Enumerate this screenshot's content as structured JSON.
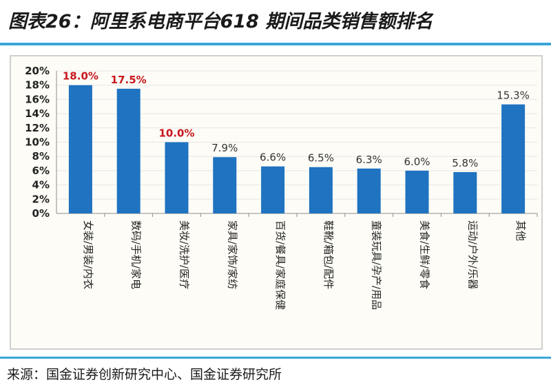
{
  "title": "图表26：阿里系电商平台618 期间品类销售额排名",
  "source": "来源：国金证券创新研究中心、国金证券研究所",
  "chart_data": {
    "type": "bar",
    "categories": [
      "女装/男装/内衣",
      "数码/手机/家电",
      "美妆/洗护/医疗",
      "家具/家饰/家纺",
      "百货/餐具/家庭保健",
      "鞋靴/箱包/配件",
      "童装玩具/孕产/用品",
      "美食/生鲜/零食",
      "运动/户外/乐器",
      "其他"
    ],
    "values": [
      18.0,
      17.5,
      10.0,
      7.9,
      6.6,
      6.5,
      6.3,
      6.0,
      5.8,
      15.3
    ],
    "data_labels": [
      "18.0%",
      "17.5%",
      "10.0%",
      "7.9%",
      "6.6%",
      "6.5%",
      "6.3%",
      "6.0%",
      "5.8%",
      "15.3%"
    ],
    "highlighted": [
      true,
      true,
      true,
      false,
      false,
      false,
      false,
      false,
      false,
      false
    ],
    "yticks": [
      "0%",
      "2%",
      "4%",
      "6%",
      "8%",
      "10%",
      "12%",
      "14%",
      "16%",
      "18%",
      "20%"
    ],
    "ylim": [
      0,
      20
    ],
    "grid": true,
    "colors": {
      "bar": "#1f73c0",
      "highlight_label": "#c8161d",
      "normal_label": "#333333",
      "grid": "#e6e6e6",
      "axis": "#8c8c8c"
    }
  }
}
